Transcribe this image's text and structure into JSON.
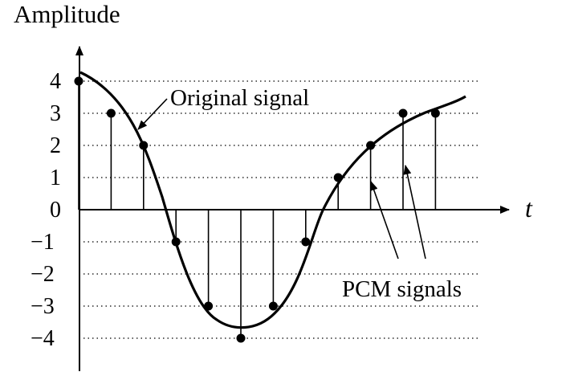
{
  "chart_data": {
    "type": "scatter",
    "ylabel": "Amplitude",
    "xlabel": "t",
    "ylim": [
      -4,
      4
    ],
    "y_ticks": [
      "4",
      "3",
      "2",
      "1",
      "0",
      "−1",
      "−2",
      "−3",
      "−4"
    ],
    "grid": "dotted horizontal lines at each integer level",
    "original_signal": {
      "label": "Original signal"
    },
    "pcm_samples": {
      "label": "PCM signals",
      "values": [
        4,
        3,
        2,
        -1,
        -3,
        -4,
        -3,
        -1,
        1,
        2,
        3,
        3
      ]
    }
  }
}
